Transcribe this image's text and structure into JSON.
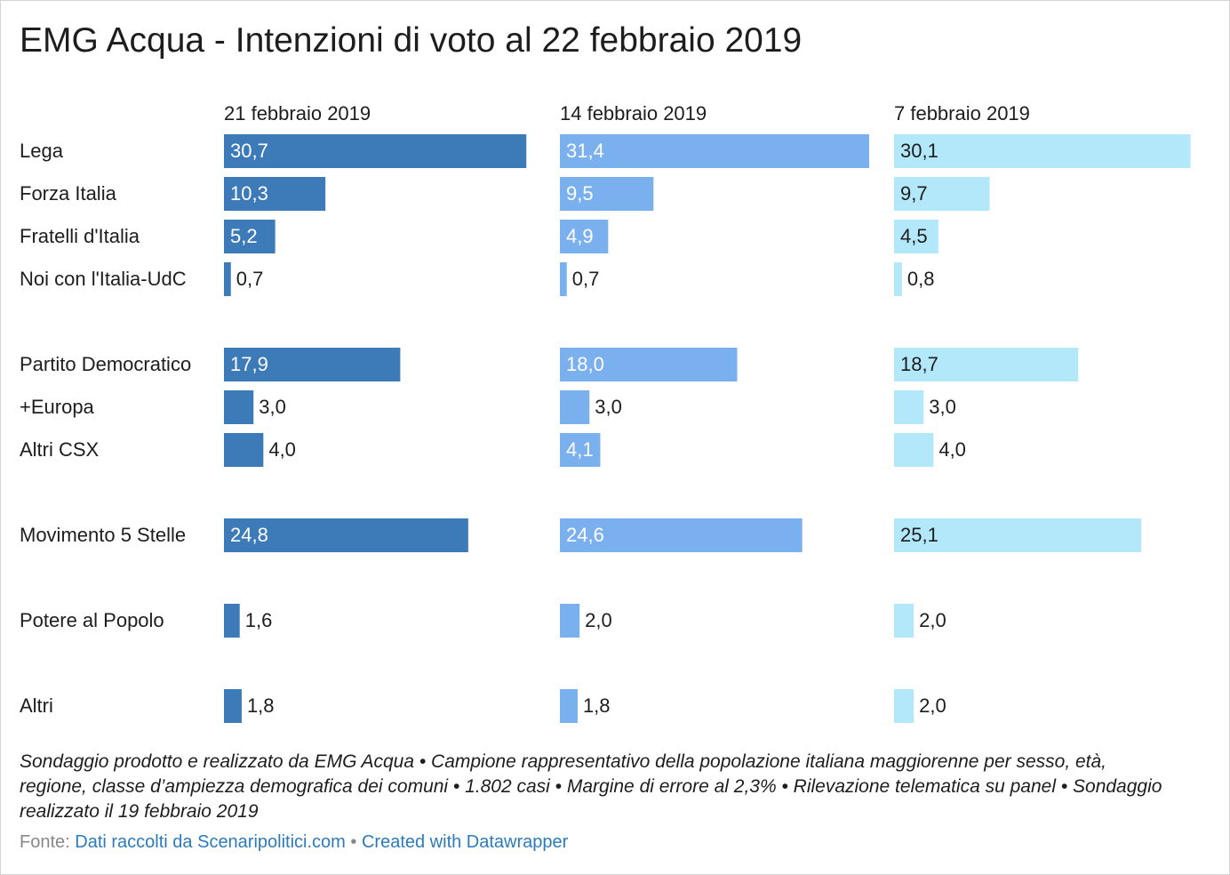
{
  "title": "EMG Acqua - Intenzioni di voto al 22 febbraio 2019",
  "notes": "Sondaggio prodotto e realizzato da EMG Acqua • Campione rappresentativo della popolazione italiana maggiorenne per sesso, età, regione, classe d’ampiezza demografica dei comuni • 1.802 casi • Margine di errore al 2,3% • Rilevazione telematica su panel • Sondaggio realizzato il 19 febbraio 2019",
  "source": {
    "prefix": "Fonte:",
    "source_link": "Dati raccolti da Scenaripolitici.com",
    "separator": "•",
    "credit_link": "Created with Datawrapper"
  },
  "chart_data": {
    "type": "bar",
    "orientation": "horizontal",
    "decimal_separator": ",",
    "xlim": [
      0,
      31.4
    ],
    "grid": false,
    "categories": [
      "Lega",
      "Forza Italia",
      "Fratelli d'Italia",
      "Noi con l'Italia-UdC",
      "Partito Democratico",
      "+Europa",
      "Altri CSX",
      "Movimento 5 Stelle",
      "Potere al Popolo",
      "Altri"
    ],
    "series": [
      {
        "name": "21 febbraio 2019",
        "color": "#3d7ab8",
        "values": [
          30.7,
          10.3,
          5.2,
          0.7,
          17.9,
          3.0,
          4.0,
          24.8,
          1.6,
          1.8
        ]
      },
      {
        "name": "14 febbraio 2019",
        "color": "#7ab0ee",
        "values": [
          31.4,
          9.5,
          4.9,
          0.7,
          18.0,
          3.0,
          4.1,
          24.6,
          2.0,
          1.8
        ]
      },
      {
        "name": "7 febbraio 2019",
        "color": "#b3e8fb",
        "values": [
          30.1,
          9.7,
          4.5,
          0.8,
          18.7,
          3.0,
          4.0,
          25.1,
          2.0,
          2.0
        ]
      }
    ]
  }
}
